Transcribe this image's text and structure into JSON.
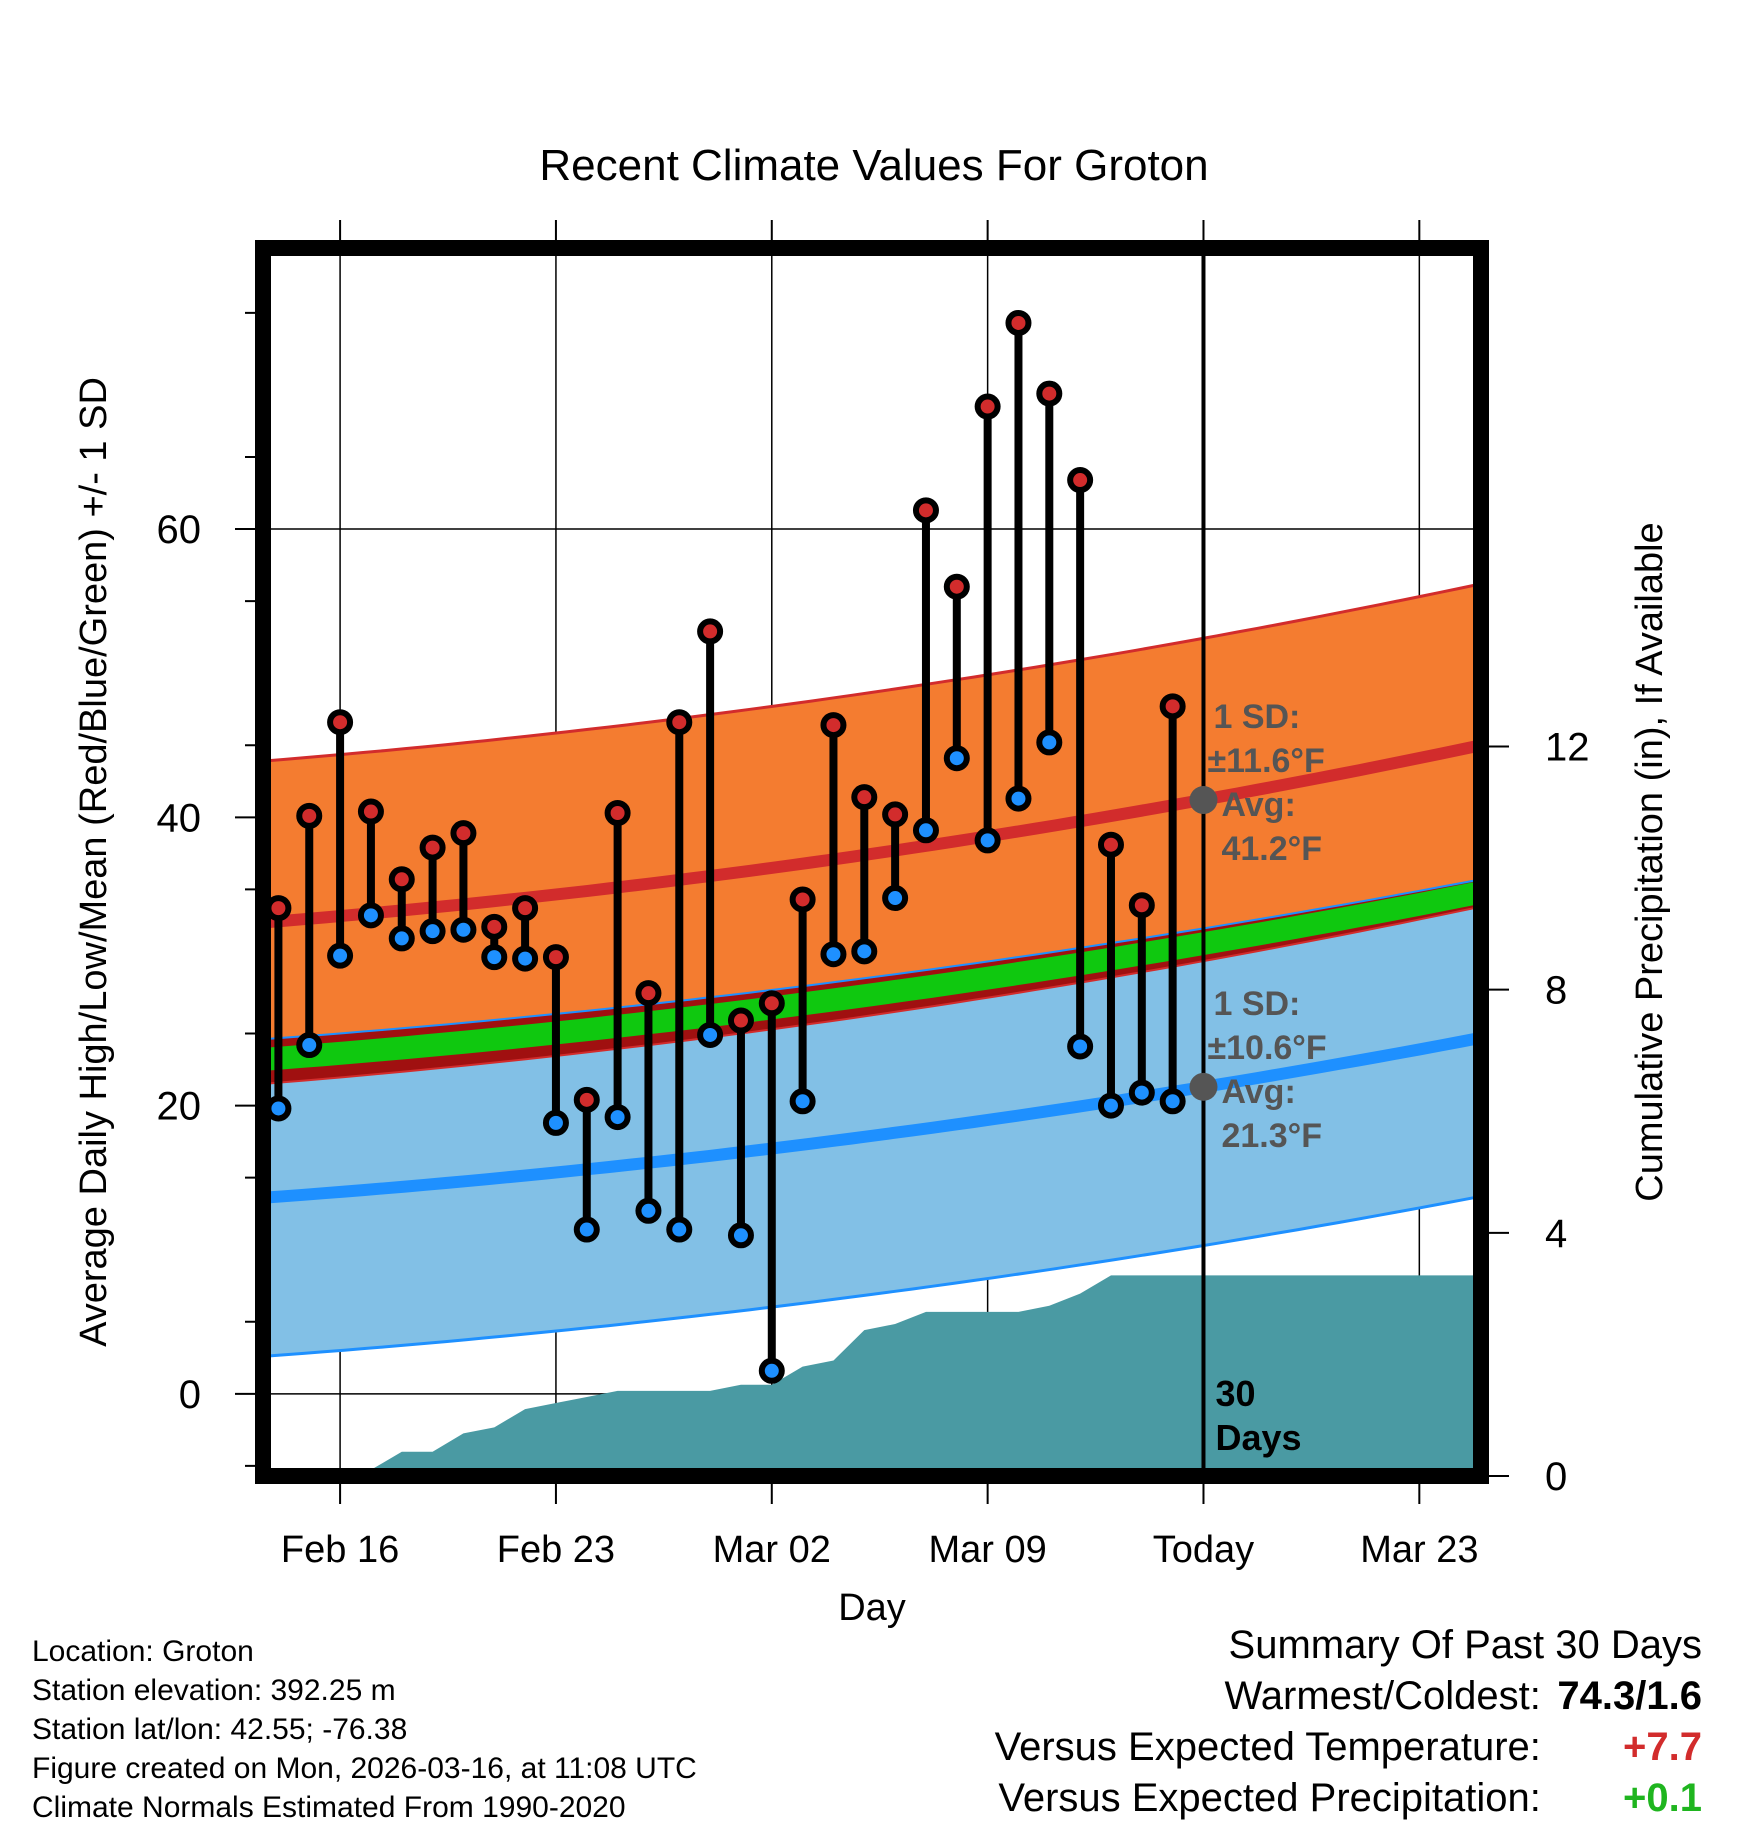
{
  "chart_data": {
    "type": "climate-range",
    "title": "Recent Climate Values For Groton",
    "xlabel": "Day",
    "ylabel_left": "Average Daily High/Low/Mean (Red/Blue/Green) +/- 1 SD",
    "ylabel_right": "Cumulative Precipitation (in), If Available",
    "x_ticks": [
      {
        "day": 2,
        "label": "Feb 16"
      },
      {
        "day": 9,
        "label": "Feb 23"
      },
      {
        "day": 16,
        "label": "Mar 02"
      },
      {
        "day": 23,
        "label": "Mar 09"
      },
      {
        "day": 30,
        "label": "Today"
      },
      {
        "day": 37,
        "label": "Mar 23"
      }
    ],
    "x_range": [
      -0.5,
      39
    ],
    "y_left_ticks": [
      0,
      20,
      40,
      60
    ],
    "y_left_range": [
      -5.7,
      79.5
    ],
    "y_right_ticks": [
      0,
      4,
      8,
      12
    ],
    "y_right_range": [
      0,
      20.2
    ],
    "today_index": 30,
    "today_label": "30\nDays",
    "observations": [
      {
        "high": 33.7,
        "low": 19.8
      },
      {
        "high": 40.1,
        "low": 24.2
      },
      {
        "high": 46.6,
        "low": 30.4
      },
      {
        "high": 40.4,
        "low": 33.2
      },
      {
        "high": 35.7,
        "low": 31.6
      },
      {
        "high": 37.9,
        "low": 32.1
      },
      {
        "high": 38.9,
        "low": 32.2
      },
      {
        "high": 32.4,
        "low": 30.3
      },
      {
        "high": 33.7,
        "low": 30.2
      },
      {
        "high": 30.3,
        "low": 18.8
      },
      {
        "high": 20.4,
        "low": 11.4
      },
      {
        "high": 40.3,
        "low": 19.2
      },
      {
        "high": 27.8,
        "low": 12.7
      },
      {
        "high": 46.6,
        "low": 11.4
      },
      {
        "high": 52.9,
        "low": 24.9
      },
      {
        "high": 25.9,
        "low": 11.0
      },
      {
        "high": 27.1,
        "low": 1.6
      },
      {
        "high": 34.3,
        "low": 20.3
      },
      {
        "high": 46.4,
        "low": 30.5
      },
      {
        "high": 41.4,
        "low": 30.7
      },
      {
        "high": 40.2,
        "low": 34.4
      },
      {
        "high": 61.3,
        "low": 39.1
      },
      {
        "high": 56.0,
        "low": 44.1
      },
      {
        "high": 68.5,
        "low": 38.4
      },
      {
        "high": 74.3,
        "low": 41.3
      },
      {
        "high": 69.4,
        "low": 45.2
      },
      {
        "high": 63.4,
        "low": 24.1
      },
      {
        "high": 38.1,
        "low": 20.0
      },
      {
        "high": 33.9,
        "low": 20.9
      },
      {
        "high": 47.7,
        "low": 20.3
      }
    ],
    "normal_high": {
      "start": 32.7,
      "end": 45.0,
      "sd": 11.2
    },
    "normal_low": {
      "start": 13.6,
      "end": 24.7,
      "sd": 11.0
    },
    "normal_mean": {
      "start": 23.2,
      "end": 34.8
    },
    "cumulative_precip": [
      0,
      0,
      0,
      0.1,
      0.4,
      0.4,
      0.7,
      0.8,
      1.1,
      1.2,
      1.3,
      1.4,
      1.4,
      1.4,
      1.4,
      1.5,
      1.5,
      1.8,
      1.9,
      2.4,
      2.5,
      2.7,
      2.7,
      2.7,
      2.7,
      2.8,
      3.0,
      3.3,
      3.3,
      3.3,
      3.3
    ],
    "annotation_high": {
      "line1": "1 SD:",
      "line2": "±11.6°F",
      "line3": "Avg:",
      "line4": "41.2°F",
      "value": 41.2
    },
    "annotation_low": {
      "line1": "1 SD:",
      "line2": "±10.6°F",
      "line3": "Avg:",
      "line4": "21.3°F",
      "value": 21.3
    }
  },
  "info": {
    "location": "Location: Groton",
    "elevation": "Station elevation: 392.25 m",
    "latlon": "Station lat/lon: 42.55; -76.38",
    "created": "Figure created on Mon, 2026-03-16, at 11:08 UTC",
    "normals": "Climate Normals Estimated From 1990-2020"
  },
  "summary": {
    "title": "Summary Of Past 30 Days",
    "warmest_label": "Warmest/Coldest:",
    "warmest_value": "74.3/1.6",
    "temp_label": "Versus Expected Temperature:",
    "temp_value": "+7.7",
    "precip_label": "Versus Expected Precipitation:",
    "precip_value": "+0.1"
  },
  "colors": {
    "high_band": "#f47c30",
    "high_line": "#d22c2c",
    "low_band": "#82c0e6",
    "low_line": "#1e90ff",
    "mean_band": "#0fc80f",
    "overlap": "#a01010",
    "precip": "#4a9aa3",
    "dot_high": "#d22c2c",
    "dot_low": "#1e90ff",
    "annotation": "#555555"
  }
}
